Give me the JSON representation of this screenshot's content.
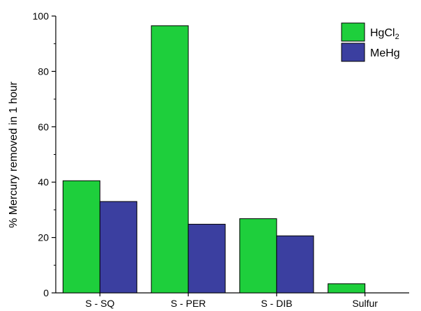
{
  "chart_data": {
    "type": "bar",
    "title": "",
    "xlabel": "",
    "ylabel": "% Mercury removed in 1 hour",
    "ylim": [
      0,
      100
    ],
    "yticks": [
      0,
      20,
      40,
      60,
      80,
      100
    ],
    "categories": [
      "S - SQ",
      "S - PER",
      "S - DIB",
      "Sulfur"
    ],
    "series": [
      {
        "name": "HgCl",
        "name_subscript": "2",
        "color": "#1ecf3c",
        "values": [
          40.5,
          96.5,
          26.8,
          3.3
        ]
      },
      {
        "name": "MeHg",
        "name_subscript": "",
        "color": "#3b3fa0",
        "values": [
          33.0,
          24.8,
          20.6,
          0
        ]
      }
    ],
    "legend": {
      "position": "top-right"
    },
    "grid": false
  }
}
